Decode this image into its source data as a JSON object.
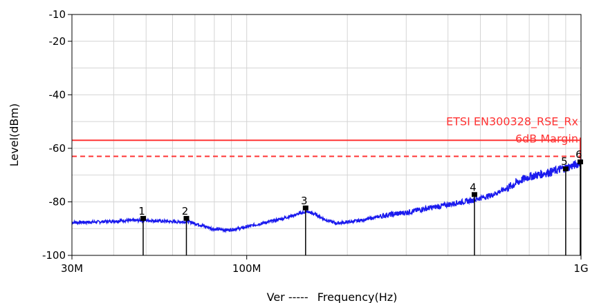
{
  "chart_data": {
    "type": "line",
    "xlabel": "Frequency(Hz)",
    "xlabel_prefix": "Ver  -----",
    "ylabel": "Level(dBm)",
    "x_scale": "log",
    "xlim": [
      30000000,
      1000000000
    ],
    "ylim": [
      -100,
      -10
    ],
    "grid": true,
    "x_ticks": [
      {
        "value": 30000000,
        "label": "30M"
      },
      {
        "value": 100000000,
        "label": "100M"
      },
      {
        "value": 1000000000,
        "label": "1G"
      }
    ],
    "y_ticks": [
      {
        "value": -10,
        "label": "-10"
      },
      {
        "value": -20,
        "label": "-20"
      },
      {
        "value": -40,
        "label": "-40"
      },
      {
        "value": -60,
        "label": "-60"
      },
      {
        "value": -80,
        "label": "-80"
      },
      {
        "value": -100,
        "label": "-100"
      }
    ],
    "y_grid": [
      -10,
      -20,
      -30,
      -40,
      -50,
      -60,
      -70,
      -80,
      -90,
      -100
    ],
    "limits": [
      {
        "label": "ETSI EN300328_RSE_Rx",
        "value": -57,
        "color": "#ff3333",
        "style": "solid"
      },
      {
        "label": "6dB Margin",
        "value": -63,
        "color": "#ff3333",
        "style": "dashed"
      }
    ],
    "series": [
      {
        "color": "#1a1aee",
        "x": [
          30000000,
          36000000,
          43000000,
          50000000,
          56000000,
          62000000,
          67000000,
          72000000,
          80000000,
          88000000,
          95000000,
          105000000,
          118000000,
          130000000,
          143000000,
          151000000,
          160000000,
          172000000,
          185000000,
          200000000,
          225000000,
          260000000,
          300000000,
          340000000,
          380000000,
          420000000,
          470000000,
          500000000,
          540000000,
          580000000,
          620000000,
          660000000,
          700000000,
          760000000,
          820000000,
          870000000,
          920000000,
          960000000,
          1000000000
        ],
        "y": [
          -87.7,
          -87.5,
          -87.0,
          -86.9,
          -87.2,
          -87.5,
          -87.4,
          -88.5,
          -90.2,
          -90.5,
          -90.0,
          -88.7,
          -87.3,
          -86.0,
          -84.5,
          -83.6,
          -84.6,
          -86.7,
          -88.0,
          -87.6,
          -86.7,
          -85.0,
          -84.0,
          -82.6,
          -81.6,
          -80.5,
          -79.5,
          -78.6,
          -77.5,
          -75.8,
          -74.0,
          -72.0,
          -70.6,
          -69.6,
          -68.7,
          -67.8,
          -67.0,
          -66.2,
          -65.3
        ]
      }
    ],
    "markers": [
      {
        "label": "1",
        "x": 49000000,
        "y": -86.3
      },
      {
        "label": "2",
        "x": 66000000,
        "y": -86.3
      },
      {
        "label": "3",
        "x": 150000000,
        "y": -82.4
      },
      {
        "label": "4",
        "x": 480000000,
        "y": -77.4
      },
      {
        "label": "5",
        "x": 900000000,
        "y": -67.8
      },
      {
        "label": "6",
        "x": 995000000,
        "y": -65.2
      }
    ]
  }
}
